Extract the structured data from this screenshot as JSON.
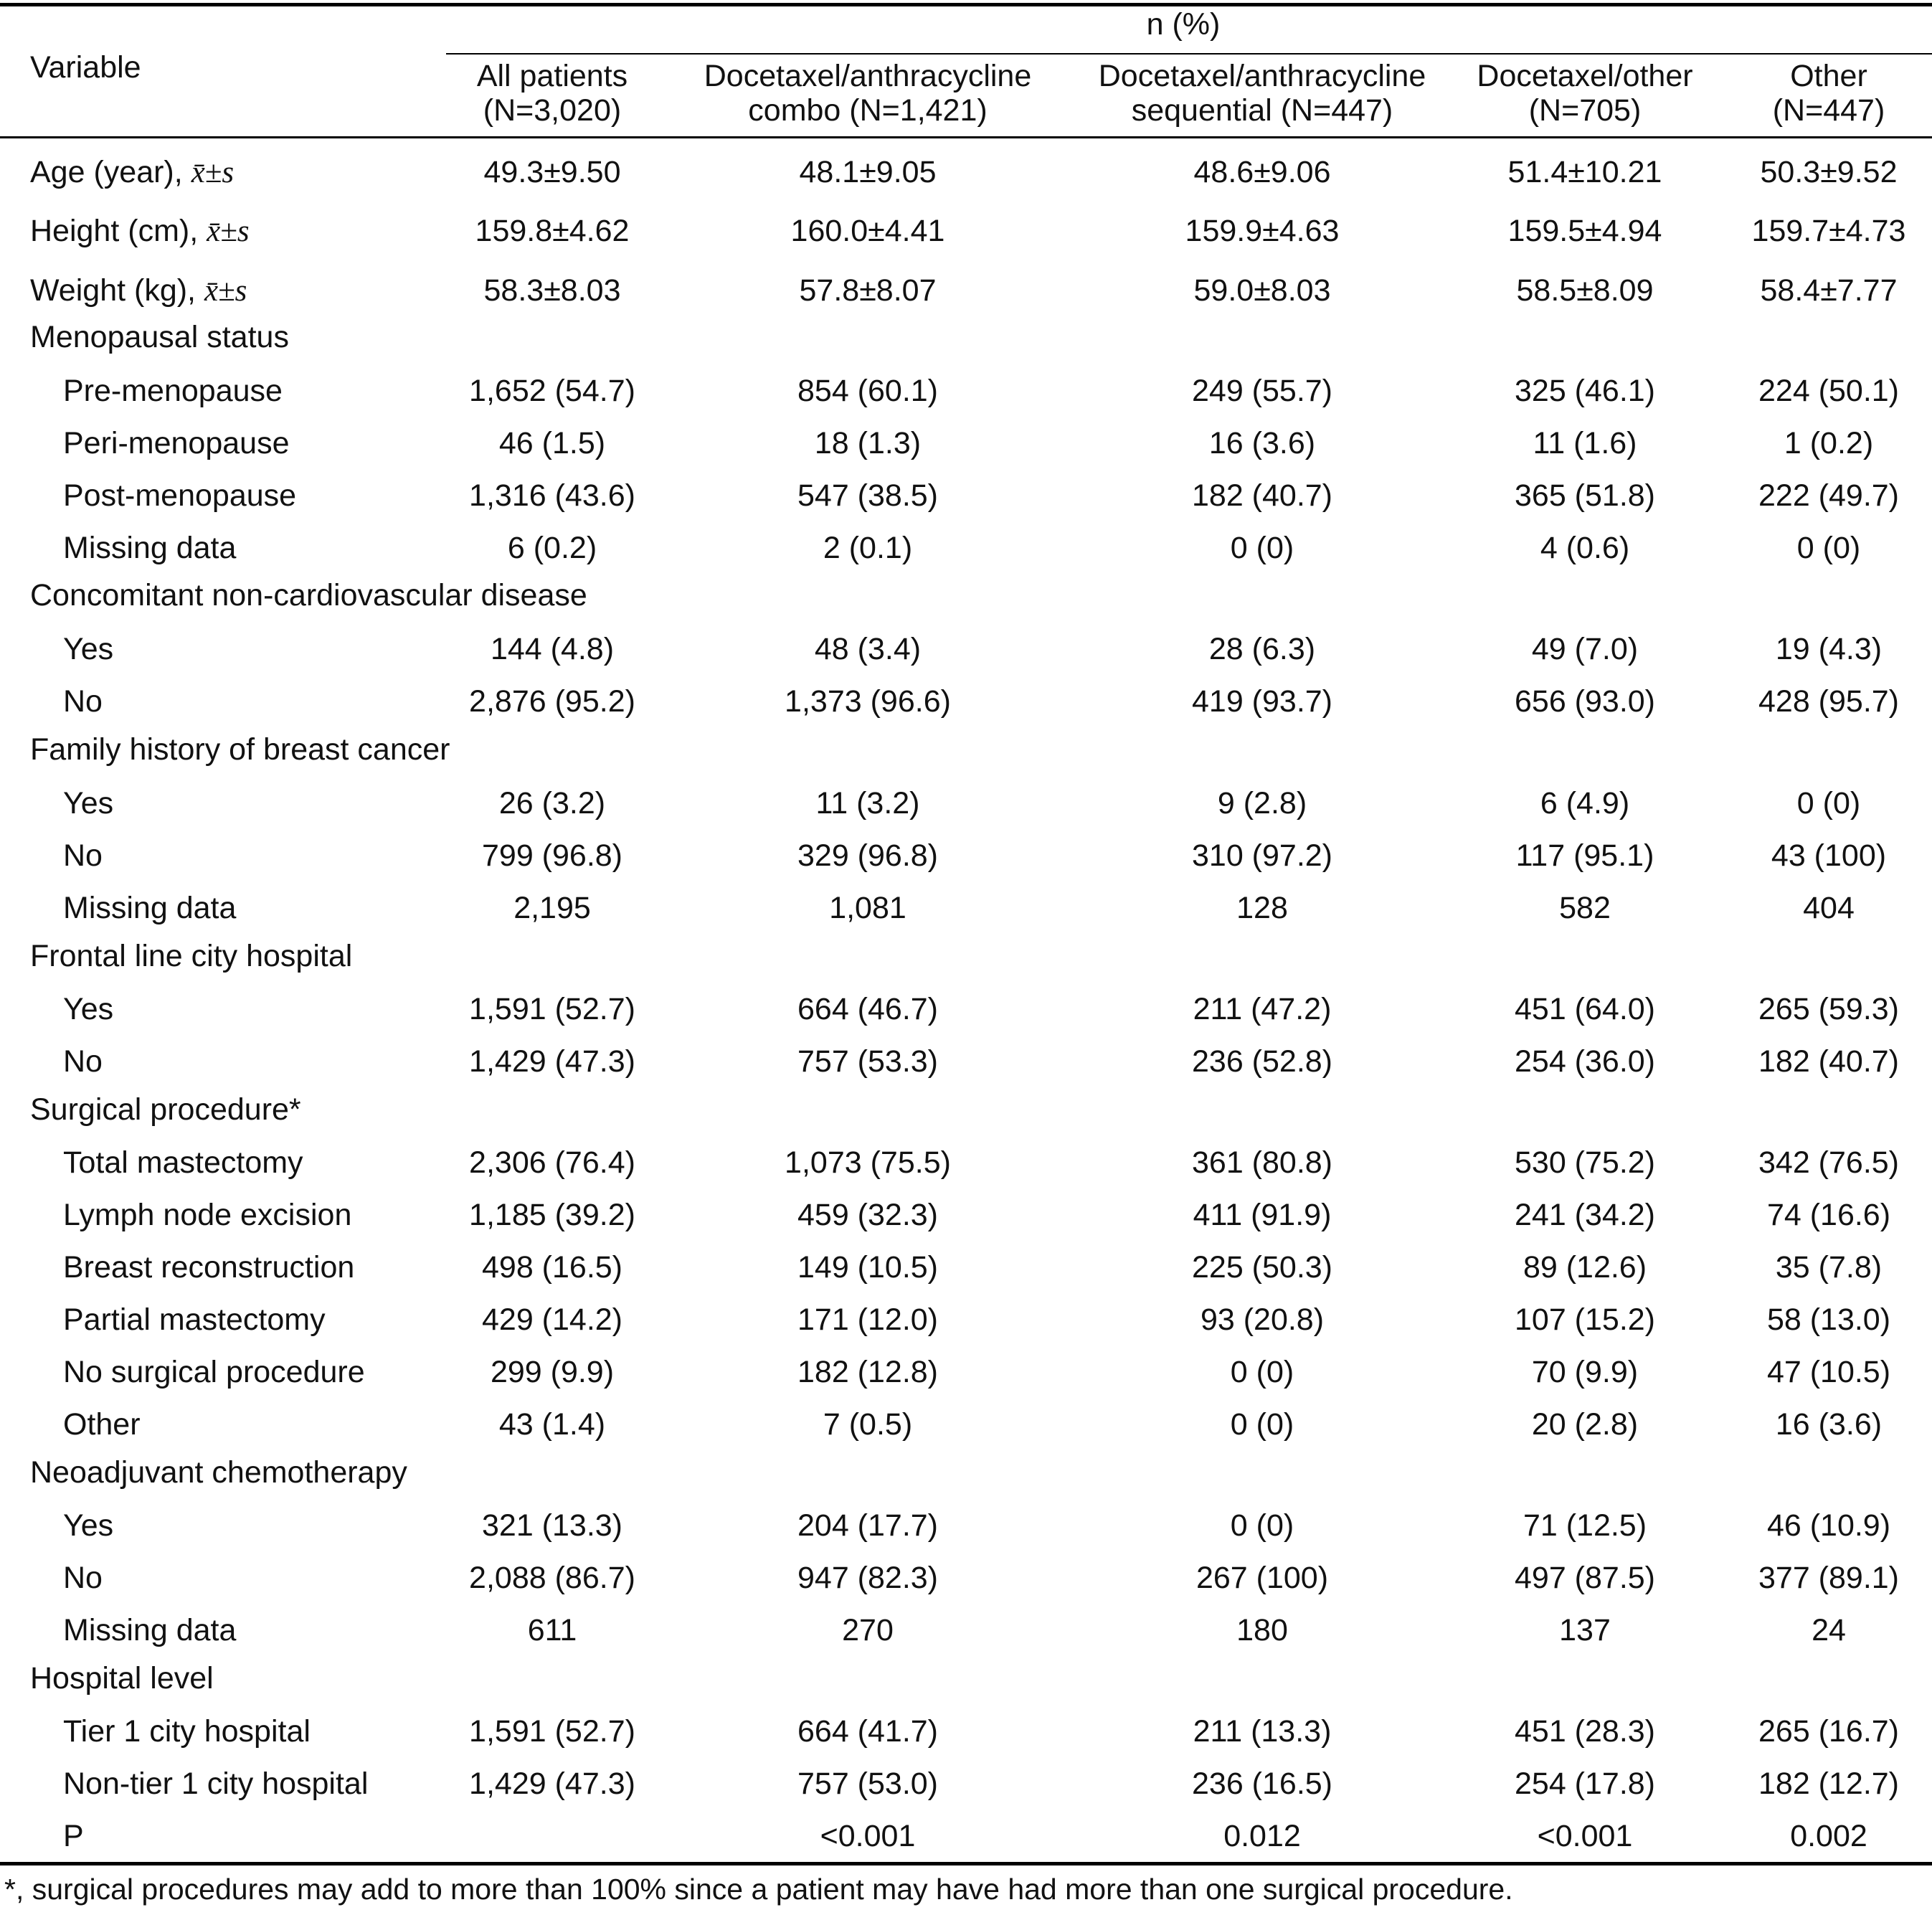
{
  "header": {
    "variable": "Variable",
    "group_label": "n (%)",
    "columns": [
      [
        "All patients",
        "(N=3,020)"
      ],
      [
        "Docetaxel/anthracycline",
        "combo (N=1,421)"
      ],
      [
        "Docetaxel/anthracycline",
        "sequential (N=447)"
      ],
      [
        "Docetaxel/other",
        "(N=705)"
      ],
      [
        "Other",
        "(N=447)"
      ]
    ]
  },
  "mean_symbol": "x̄±s",
  "rows": [
    {
      "label": "Age (year),",
      "stat": true,
      "values": [
        "49.3±9.50",
        "48.1±9.05",
        "48.6±9.06",
        "51.4±10.21",
        "50.3±9.52"
      ]
    },
    {
      "label": "Height (cm),",
      "stat": true,
      "values": [
        "159.8±4.62",
        "160.0±4.41",
        "159.9±4.63",
        "159.5±4.94",
        "159.7±4.73"
      ]
    },
    {
      "label": "Weight (kg),",
      "stat": true,
      "values": [
        "58.3±8.03",
        "57.8±8.07",
        "59.0±8.03",
        "58.5±8.09",
        "58.4±7.77"
      ]
    },
    {
      "label": "Menopausal status",
      "values": []
    },
    {
      "label": "Pre-menopause",
      "sub": true,
      "values": [
        "1,652 (54.7)",
        "854 (60.1)",
        "249 (55.7)",
        "325 (46.1)",
        "224 (50.1)"
      ]
    },
    {
      "label": "Peri-menopause",
      "sub": true,
      "values": [
        "46 (1.5)",
        "18 (1.3)",
        "16 (3.6)",
        "11 (1.6)",
        "1 (0.2)"
      ]
    },
    {
      "label": "Post-menopause",
      "sub": true,
      "values": [
        "1,316 (43.6)",
        "547 (38.5)",
        "182 (40.7)",
        "365 (51.8)",
        "222 (49.7)"
      ]
    },
    {
      "label": "Missing data",
      "sub": true,
      "values": [
        "6 (0.2)",
        "2 (0.1)",
        "0 (0)",
        "4 (0.6)",
        "0 (0)"
      ]
    },
    {
      "label": "Concomitant non-cardiovascular disease",
      "values": []
    },
    {
      "label": "Yes",
      "sub": true,
      "values": [
        "144 (4.8)",
        "48 (3.4)",
        "28 (6.3)",
        "49 (7.0)",
        "19 (4.3)"
      ]
    },
    {
      "label": "No",
      "sub": true,
      "values": [
        "2,876 (95.2)",
        "1,373 (96.6)",
        "419 (93.7)",
        "656 (93.0)",
        "428 (95.7)"
      ]
    },
    {
      "label": "Family history of breast cancer",
      "values": []
    },
    {
      "label": "Yes",
      "sub": true,
      "values": [
        "26 (3.2)",
        "11 (3.2)",
        "9 (2.8)",
        "6 (4.9)",
        "0 (0)"
      ]
    },
    {
      "label": "No",
      "sub": true,
      "values": [
        "799 (96.8)",
        "329 (96.8)",
        "310 (97.2)",
        "117 (95.1)",
        "43 (100)"
      ]
    },
    {
      "label": "Missing data",
      "sub": true,
      "values": [
        "2,195",
        "1,081",
        "128",
        "582",
        "404"
      ]
    },
    {
      "label": "Frontal line city hospital",
      "values": []
    },
    {
      "label": "Yes",
      "sub": true,
      "values": [
        "1,591 (52.7)",
        "664 (46.7)",
        "211 (47.2)",
        "451 (64.0)",
        "265 (59.3)"
      ]
    },
    {
      "label": "No",
      "sub": true,
      "values": [
        "1,429 (47.3)",
        "757 (53.3)",
        "236 (52.8)",
        "254 (36.0)",
        "182 (40.7)"
      ]
    },
    {
      "label": "Surgical procedure*",
      "values": []
    },
    {
      "label": "Total mastectomy",
      "sub": true,
      "values": [
        "2,306 (76.4)",
        "1,073 (75.5)",
        "361 (80.8)",
        "530 (75.2)",
        "342 (76.5)"
      ]
    },
    {
      "label": "Lymph node excision",
      "sub": true,
      "values": [
        "1,185 (39.2)",
        "459 (32.3)",
        "411 (91.9)",
        "241 (34.2)",
        "74 (16.6)"
      ]
    },
    {
      "label": "Breast reconstruction",
      "sub": true,
      "values": [
        "498 (16.5)",
        "149 (10.5)",
        "225 (50.3)",
        "89 (12.6)",
        "35 (7.8)"
      ]
    },
    {
      "label": "Partial mastectomy",
      "sub": true,
      "values": [
        "429 (14.2)",
        "171 (12.0)",
        "93 (20.8)",
        "107 (15.2)",
        "58 (13.0)"
      ]
    },
    {
      "label": "No surgical procedure",
      "sub": true,
      "values": [
        "299 (9.9)",
        "182 (12.8)",
        "0 (0)",
        "70 (9.9)",
        "47 (10.5)"
      ]
    },
    {
      "label": "Other",
      "sub": true,
      "values": [
        "43 (1.4)",
        "7 (0.5)",
        "0 (0)",
        "20 (2.8)",
        "16 (3.6)"
      ]
    },
    {
      "label": "Neoadjuvant chemotherapy",
      "values": []
    },
    {
      "label": "Yes",
      "sub": true,
      "values": [
        "321 (13.3)",
        "204 (17.7)",
        "0 (0)",
        "71 (12.5)",
        "46 (10.9)"
      ]
    },
    {
      "label": "No",
      "sub": true,
      "values": [
        "2,088 (86.7)",
        "947 (82.3)",
        "267 (100)",
        "497 (87.5)",
        "377 (89.1)"
      ]
    },
    {
      "label": "Missing data",
      "sub": true,
      "values": [
        "611",
        "270",
        "180",
        "137",
        "24"
      ]
    },
    {
      "label": "Hospital level",
      "values": []
    },
    {
      "label": "Tier 1 city hospital",
      "sub": true,
      "values": [
        "1,591 (52.7)",
        "664 (41.7)",
        "211 (13.3)",
        "451 (28.3)",
        "265 (16.7)"
      ]
    },
    {
      "label": "Non-tier 1 city hospital",
      "sub": true,
      "values": [
        "1,429 (47.3)",
        "757 (53.0)",
        "236 (16.5)",
        "254 (17.8)",
        "182 (12.7)"
      ]
    },
    {
      "label": "P",
      "sub": true,
      "values": [
        "",
        "<0.001",
        "0.012",
        "<0.001",
        "0.002"
      ]
    }
  ],
  "footnote": "*, surgical procedures may add to more than 100% since a patient may have had more than one surgical procedure."
}
